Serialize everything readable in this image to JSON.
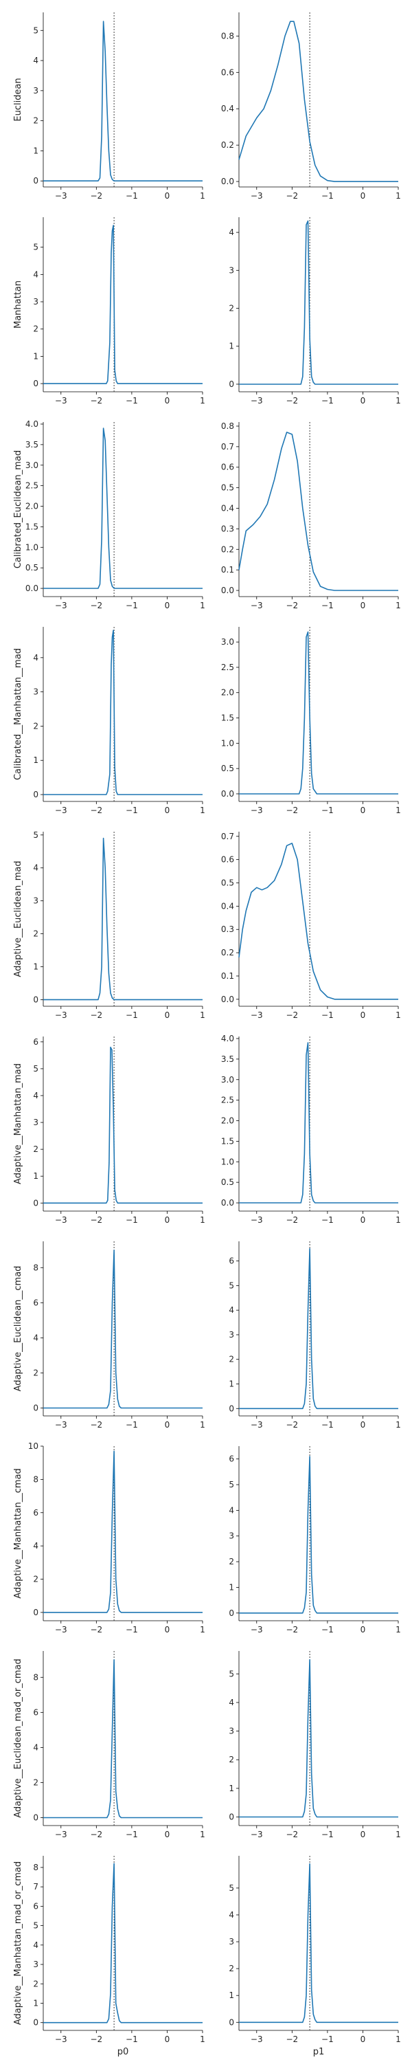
{
  "colors": {
    "line": "#1f77b4",
    "reference": "#404040",
    "axis": "#000000"
  },
  "chart_data": {
    "type": "line",
    "grid": false,
    "xlabels": [
      "p0",
      "p1"
    ],
    "xlim": [
      -3.5,
      1.0
    ],
    "xticks": [
      -3,
      -2,
      -1,
      0,
      1
    ],
    "reference_x": -1.5,
    "rows": [
      {
        "ylabel": "Euclidean",
        "panels": [
          {
            "ylim": [
              -0.2,
              5.6
            ],
            "yticks": [
              0,
              1,
              2,
              3,
              4,
              5
            ],
            "x": [
              -3.5,
              -1.95,
              -1.9,
              -1.85,
              -1.8,
              -1.75,
              -1.7,
              -1.65,
              -1.6,
              -1.55,
              -1.5,
              -1.45,
              -1.4,
              1.0
            ],
            "y": [
              0,
              0,
              0.1,
              1.5,
              5.3,
              4.3,
              2.5,
              1.0,
              0.2,
              0.05,
              0,
              0,
              0,
              0
            ]
          },
          {
            "ylim": [
              -0.03,
              0.93
            ],
            "yticks": [
              0.0,
              0.2,
              0.4,
              0.6,
              0.8
            ],
            "x": [
              -3.5,
              -3.3,
              -3.0,
              -2.8,
              -2.6,
              -2.4,
              -2.2,
              -2.05,
              -1.95,
              -1.8,
              -1.65,
              -1.5,
              -1.35,
              -1.2,
              -1.0,
              -0.8,
              -0.6,
              1.0
            ],
            "y": [
              0.12,
              0.25,
              0.35,
              0.4,
              0.5,
              0.64,
              0.8,
              0.88,
              0.88,
              0.76,
              0.45,
              0.22,
              0.09,
              0.03,
              0.005,
              0,
              0,
              0
            ]
          }
        ]
      },
      {
        "ylabel": "Manhattan",
        "panels": [
          {
            "ylim": [
              -0.3,
              6.1
            ],
            "yticks": [
              0,
              1,
              2,
              3,
              4,
              5
            ],
            "x": [
              -3.5,
              -1.72,
              -1.68,
              -1.62,
              -1.58,
              -1.55,
              -1.52,
              -1.48,
              -1.44,
              -1.4,
              -1.3,
              1.0
            ],
            "y": [
              0,
              0,
              0.1,
              1.5,
              4.8,
              5.6,
              5.8,
              0.5,
              0.1,
              0,
              0,
              0
            ]
          },
          {
            "ylim": [
              -0.2,
              4.4
            ],
            "yticks": [
              0,
              1,
              2,
              3,
              4
            ],
            "x": [
              -3.5,
              -1.75,
              -1.7,
              -1.65,
              -1.6,
              -1.55,
              -1.5,
              -1.45,
              -1.4,
              -1.35,
              1.0
            ],
            "y": [
              0,
              0,
              0.2,
              1.5,
              4.2,
              4.3,
              1.2,
              0.2,
              0.05,
              0,
              0
            ]
          }
        ]
      },
      {
        "ylabel": "Calibrated_Euclidean_mad",
        "panels": [
          {
            "ylim": [
              -0.2,
              4.05
            ],
            "yticks": [
              0.0,
              0.5,
              1.0,
              1.5,
              2.0,
              2.5,
              3.0,
              3.5,
              4.0
            ],
            "x": [
              -3.5,
              -1.95,
              -1.9,
              -1.85,
              -1.8,
              -1.75,
              -1.7,
              -1.65,
              -1.6,
              -1.55,
              -1.5,
              -1.45,
              1.0
            ],
            "y": [
              0,
              0,
              0.1,
              1.2,
              3.9,
              3.6,
              2.3,
              1.0,
              0.2,
              0.05,
              0,
              0,
              0
            ]
          },
          {
            "ylim": [
              -0.03,
              0.82
            ],
            "yticks": [
              0.0,
              0.1,
              0.2,
              0.3,
              0.4,
              0.5,
              0.6,
              0.7,
              0.8
            ],
            "x": [
              -3.5,
              -3.4,
              -3.3,
              -3.1,
              -2.9,
              -2.7,
              -2.5,
              -2.3,
              -2.15,
              -2.0,
              -1.85,
              -1.7,
              -1.55,
              -1.4,
              -1.2,
              -1.0,
              -0.8,
              -0.6,
              1.0
            ],
            "y": [
              0.1,
              0.2,
              0.29,
              0.32,
              0.36,
              0.42,
              0.54,
              0.69,
              0.77,
              0.76,
              0.63,
              0.4,
              0.22,
              0.09,
              0.02,
              0.005,
              0,
              0,
              0
            ]
          }
        ]
      },
      {
        "ylabel": "Calibrated__Manhattan__mad",
        "panels": [
          {
            "ylim": [
              -0.2,
              4.9
            ],
            "yticks": [
              0,
              1,
              2,
              3,
              4
            ],
            "x": [
              -3.5,
              -1.72,
              -1.68,
              -1.62,
              -1.58,
              -1.55,
              -1.52,
              -1.48,
              -1.44,
              -1.4,
              -1.3,
              1.0
            ],
            "y": [
              0,
              0,
              0.1,
              0.6,
              3.8,
              4.6,
              4.8,
              0.8,
              0.1,
              0,
              0,
              0
            ]
          },
          {
            "ylim": [
              -0.15,
              3.3
            ],
            "yticks": [
              0.0,
              0.5,
              1.0,
              1.5,
              2.0,
              2.5,
              3.0
            ],
            "x": [
              -3.5,
              -1.8,
              -1.75,
              -1.7,
              -1.65,
              -1.6,
              -1.55,
              -1.5,
              -1.45,
              -1.4,
              -1.3,
              1.0
            ],
            "y": [
              0,
              0,
              0.1,
              0.5,
              1.5,
              3.1,
              3.2,
              1.5,
              0.4,
              0.1,
              0,
              0
            ]
          }
        ]
      },
      {
        "ylabel": "Adaptive__Euclidean_mad",
        "panels": [
          {
            "ylim": [
              -0.2,
              5.1
            ],
            "yticks": [
              0,
              1,
              2,
              3,
              4,
              5
            ],
            "x": [
              -3.5,
              -1.95,
              -1.9,
              -1.85,
              -1.8,
              -1.75,
              -1.7,
              -1.65,
              -1.6,
              -1.55,
              -1.5,
              -1.45,
              1.0
            ],
            "y": [
              0,
              0,
              0.2,
              1.0,
              4.9,
              4.0,
              2.2,
              0.8,
              0.2,
              0.05,
              0,
              0,
              0
            ]
          },
          {
            "ylim": [
              -0.03,
              0.72
            ],
            "yticks": [
              0.0,
              0.1,
              0.2,
              0.3,
              0.4,
              0.5,
              0.6,
              0.7
            ],
            "x": [
              -3.5,
              -3.4,
              -3.3,
              -3.15,
              -3.0,
              -2.85,
              -2.7,
              -2.5,
              -2.3,
              -2.15,
              -2.0,
              -1.85,
              -1.7,
              -1.55,
              -1.4,
              -1.2,
              -1.0,
              -0.8,
              -0.6,
              1.0
            ],
            "y": [
              0.18,
              0.3,
              0.38,
              0.46,
              0.48,
              0.47,
              0.48,
              0.51,
              0.58,
              0.66,
              0.67,
              0.6,
              0.42,
              0.24,
              0.12,
              0.04,
              0.01,
              0,
              0,
              0
            ]
          }
        ]
      },
      {
        "ylabel": "Adaptive__Manhattan_mad",
        "panels": [
          {
            "ylim": [
              -0.3,
              6.2
            ],
            "yticks": [
              0,
              1,
              2,
              3,
              4,
              5,
              6
            ],
            "x": [
              -3.5,
              -1.72,
              -1.68,
              -1.64,
              -1.6,
              -1.56,
              -1.52,
              -1.48,
              -1.44,
              -1.4,
              -1.3,
              1.0
            ],
            "y": [
              0,
              0,
              0.1,
              1.5,
              5.8,
              5.7,
              3.5,
              0.5,
              0.1,
              0,
              0,
              0
            ]
          },
          {
            "ylim": [
              -0.2,
              4.05
            ],
            "yticks": [
              0.0,
              0.5,
              1.0,
              1.5,
              2.0,
              2.5,
              3.0,
              3.5,
              4.0
            ],
            "x": [
              -3.5,
              -1.75,
              -1.7,
              -1.65,
              -1.6,
              -1.55,
              -1.5,
              -1.45,
              -1.4,
              -1.35,
              1.0
            ],
            "y": [
              0,
              0,
              0.2,
              1.2,
              3.6,
              3.9,
              1.2,
              0.2,
              0.05,
              0,
              0
            ]
          }
        ]
      },
      {
        "ylabel": "Adaptive__Euclidean__cmad",
        "panels": [
          {
            "ylim": [
              -0.45,
              9.5
            ],
            "yticks": [
              0,
              2,
              4,
              6,
              8
            ],
            "x": [
              -3.5,
              -1.7,
              -1.65,
              -1.6,
              -1.55,
              -1.5,
              -1.45,
              -1.4,
              -1.35,
              -1.3,
              1.0
            ],
            "y": [
              0,
              0,
              0.2,
              1.0,
              6.0,
              9.0,
              2.0,
              0.5,
              0.1,
              0,
              0
            ]
          },
          {
            "ylim": [
              -0.3,
              6.8
            ],
            "yticks": [
              0,
              1,
              2,
              3,
              4,
              5,
              6
            ],
            "x": [
              -3.5,
              -1.7,
              -1.65,
              -1.6,
              -1.55,
              -1.5,
              -1.45,
              -1.4,
              -1.35,
              -1.3,
              1.0
            ],
            "y": [
              0,
              0,
              0.2,
              1.0,
              4.0,
              6.5,
              2.0,
              0.4,
              0.1,
              0,
              0
            ]
          }
        ]
      },
      {
        "ylabel": "Adaptive__Manhattan__cmad",
        "panels": [
          {
            "ylim": [
              -0.5,
              10.0
            ],
            "yticks": [
              0,
              2,
              4,
              6,
              8,
              10
            ],
            "x": [
              -3.5,
              -1.7,
              -1.65,
              -1.6,
              -1.55,
              -1.5,
              -1.45,
              -1.4,
              -1.35,
              -1.3,
              1.0
            ],
            "y": [
              0,
              0,
              0.2,
              1.2,
              6.0,
              9.7,
              2.0,
              0.5,
              0.1,
              0,
              0
            ]
          },
          {
            "ylim": [
              -0.3,
              6.5
            ],
            "yticks": [
              0,
              1,
              2,
              3,
              4,
              5,
              6
            ],
            "x": [
              -3.5,
              -1.7,
              -1.65,
              -1.6,
              -1.55,
              -1.5,
              -1.45,
              -1.4,
              -1.35,
              -1.3,
              1.0
            ],
            "y": [
              0,
              0,
              0.2,
              0.8,
              4.0,
              6.1,
              1.5,
              0.3,
              0.1,
              0,
              0
            ]
          }
        ]
      },
      {
        "ylabel": "Adaptive__Euclidean_mad_or_cmad",
        "panels": [
          {
            "ylim": [
              -0.45,
              9.5
            ],
            "yticks": [
              0,
              2,
              4,
              6,
              8
            ],
            "x": [
              -3.5,
              -1.7,
              -1.65,
              -1.6,
              -1.55,
              -1.5,
              -1.45,
              -1.4,
              -1.35,
              -1.3,
              1.0
            ],
            "y": [
              0,
              0,
              0.2,
              1.0,
              5.0,
              9.0,
              1.5,
              0.5,
              0.1,
              0,
              0
            ]
          },
          {
            "ylim": [
              -0.3,
              5.8
            ],
            "yticks": [
              0,
              1,
              2,
              3,
              4,
              5
            ],
            "x": [
              -3.5,
              -1.7,
              -1.65,
              -1.6,
              -1.55,
              -1.5,
              -1.45,
              -1.4,
              -1.35,
              -1.3,
              1.0
            ],
            "y": [
              0,
              0,
              0.2,
              0.8,
              3.5,
              5.5,
              1.5,
              0.3,
              0.1,
              0,
              0
            ]
          }
        ]
      },
      {
        "ylabel": "Adaptive__Manhattan_mad_or_cmad",
        "panels": [
          {
            "ylim": [
              -0.4,
              8.6
            ],
            "yticks": [
              0,
              1,
              2,
              3,
              4,
              5,
              6,
              7,
              8
            ],
            "x": [
              -3.5,
              -1.7,
              -1.65,
              -1.6,
              -1.55,
              -1.5,
              -1.45,
              -1.4,
              -1.35,
              -1.3,
              1.0
            ],
            "y": [
              0,
              0,
              0.2,
              1.5,
              6.0,
              8.2,
              1.0,
              0.5,
              0.1,
              0,
              0
            ]
          },
          {
            "ylim": [
              -0.3,
              6.2
            ],
            "yticks": [
              0,
              1,
              2,
              3,
              4,
              5
            ],
            "x": [
              -3.5,
              -1.7,
              -1.65,
              -1.6,
              -1.55,
              -1.5,
              -1.45,
              -1.4,
              -1.35,
              -1.3,
              1.0
            ],
            "y": [
              0,
              0,
              0.2,
              1.0,
              4.0,
              5.9,
              1.2,
              0.3,
              0.1,
              0,
              0
            ]
          }
        ]
      }
    ]
  }
}
